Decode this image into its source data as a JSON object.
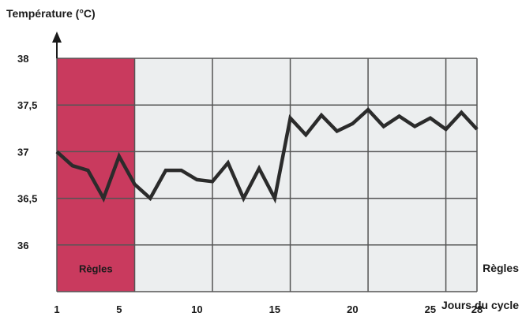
{
  "chart_data": {
    "type": "line",
    "title": "",
    "ylabel": "Température (°C)",
    "xlabel": "Jours du cycle",
    "ylim": [
      35.5,
      38
    ],
    "xlim": [
      1,
      28
    ],
    "y_ticks": [
      {
        "value": 38,
        "label": "38"
      },
      {
        "value": 37.5,
        "label": "37,5"
      },
      {
        "value": 37,
        "label": "37"
      },
      {
        "value": 36.5,
        "label": "36,5"
      },
      {
        "value": 36,
        "label": "36"
      }
    ],
    "x_ticks": [
      {
        "value": 1,
        "label": "1"
      },
      {
        "value": 5,
        "label": "5"
      },
      {
        "value": 10,
        "label": "10"
      },
      {
        "value": 15,
        "label": "15"
      },
      {
        "value": 20,
        "label": "20"
      },
      {
        "value": 25,
        "label": "25"
      },
      {
        "value": 28,
        "label": "28"
      }
    ],
    "grid_x": [
      1,
      6,
      11,
      16,
      21,
      26,
      28
    ],
    "grid_y": [
      35.5,
      36,
      36.5,
      37,
      37.5,
      38
    ],
    "grid": true,
    "series": [
      {
        "x": [
          1,
          2,
          3,
          4,
          5,
          6,
          7,
          8,
          9,
          10,
          11,
          12,
          13,
          14,
          15,
          16,
          17,
          18,
          19,
          20,
          21,
          22,
          23,
          24,
          25,
          26,
          27,
          28
        ],
        "values": [
          37.0,
          36.85,
          36.8,
          36.5,
          36.95,
          36.65,
          36.5,
          36.8,
          36.8,
          36.7,
          36.68,
          36.88,
          36.5,
          36.82,
          36.5,
          37.36,
          37.18,
          37.39,
          37.22,
          37.3,
          37.45,
          37.27,
          37.38,
          37.27,
          37.36,
          37.24,
          37.42,
          37.24
        ]
      }
    ],
    "menses_band": {
      "from": 1,
      "to": 5,
      "label": "Règles"
    },
    "right_label": "Règles",
    "colors": {
      "line": "#2b2b2b",
      "menses": "#c93a5e",
      "grid": "#555555",
      "plot_bg": "#eceeef"
    }
  }
}
